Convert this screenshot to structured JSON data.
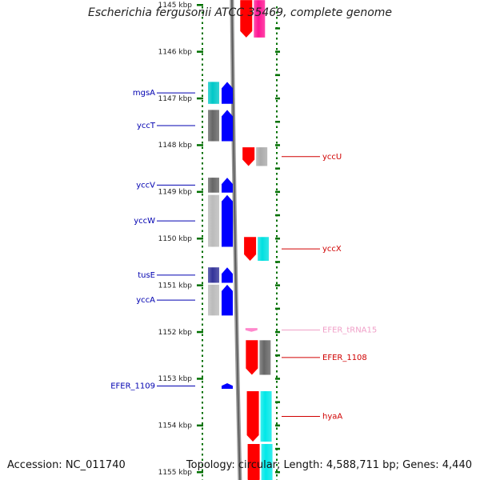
{
  "title": "Escherichia fergusonii ATCC 35469, complete genome",
  "accession": "Accession: NC_011740",
  "topology": "Topology: circular; Length: 4,588,711 bp; Genes: 4,440",
  "axis_unit": "kbp",
  "kbp_ticks": [
    {
      "kbp": 1145,
      "label": "1145 kbp"
    },
    {
      "kbp": 1146,
      "label": "1146 kbp"
    },
    {
      "kbp": 1147,
      "label": "1147 kbp"
    },
    {
      "kbp": 1148,
      "label": "1148 kbp"
    },
    {
      "kbp": 1149,
      "label": "1149 kbp"
    },
    {
      "kbp": 1150,
      "label": "1150 kbp"
    },
    {
      "kbp": 1151,
      "label": "1151 kbp"
    },
    {
      "kbp": 1152,
      "label": "1152 kbp"
    },
    {
      "kbp": 1153,
      "label": "1153 kbp"
    },
    {
      "kbp": 1154,
      "label": "1154 kbp"
    },
    {
      "kbp": 1155,
      "label": "1155 kbp"
    }
  ],
  "colors": {
    "left_label": "#0000b0",
    "right_label": "#d00000",
    "trna_label": "#f0a0c8",
    "backbone": "#888888",
    "tick": "#007000",
    "forward_cds": "#0000ff",
    "reverse_cds": "#ff0000",
    "trna": "#ff88cc"
  },
  "genes": [
    {
      "label": "",
      "start": 1144.9,
      "end": 1145.7,
      "strand": "reverse",
      "feature_color": "#ff0000",
      "cog_color": "#ff1493"
    },
    {
      "label": "mgsA",
      "start": 1146.65,
      "end": 1147.12,
      "strand": "forward",
      "feature_color": "#0000ff",
      "cog_color": "#00c8c8"
    },
    {
      "label": "yccT",
      "start": 1147.25,
      "end": 1147.92,
      "strand": "forward",
      "feature_color": "#0000ff",
      "cog_color": "#666666"
    },
    {
      "label": "yccU",
      "start": 1148.05,
      "end": 1148.45,
      "strand": "reverse",
      "feature_color": "#ff0000",
      "cog_color": "#aaaaaa"
    },
    {
      "label": "yccV",
      "start": 1148.7,
      "end": 1149.02,
      "strand": "forward",
      "feature_color": "#0000ff",
      "cog_color": "#666666"
    },
    {
      "label": "yccW",
      "start": 1149.07,
      "end": 1150.18,
      "strand": "forward",
      "feature_color": "#0000ff",
      "cog_color": "#bbbbbb"
    },
    {
      "label": "yccX",
      "start": 1149.97,
      "end": 1150.48,
      "strand": "reverse",
      "feature_color": "#ff0000",
      "cog_color": "#00e0e0"
    },
    {
      "label": "tusE",
      "start": 1150.62,
      "end": 1150.95,
      "strand": "forward",
      "feature_color": "#0000ff",
      "cog_color": "#333399"
    },
    {
      "label": "yccA",
      "start": 1150.99,
      "end": 1151.65,
      "strand": "forward",
      "feature_color": "#0000ff",
      "cog_color": "#bbbbbb"
    },
    {
      "label": "EFER_tRNA15",
      "start": 1151.92,
      "end": 1152.0,
      "strand": "reverse",
      "feature_color": "#ff88cc",
      "cog_color": ""
    },
    {
      "label": "EFER_1108",
      "start": 1152.18,
      "end": 1152.92,
      "strand": "reverse",
      "feature_color": "#ff0000",
      "cog_color": "#666666"
    },
    {
      "label": "EFER_1109",
      "start": 1153.1,
      "end": 1153.22,
      "strand": "forward",
      "feature_color": "#0000ff",
      "cog_color": ""
    },
    {
      "label": "hyaA",
      "start": 1153.27,
      "end": 1154.35,
      "strand": "reverse",
      "feature_color": "#ff0000",
      "cog_color": "#00e8e8"
    },
    {
      "label": "",
      "start": 1154.4,
      "end": 1155.3,
      "strand": "reverse",
      "feature_color": "#ff0000",
      "cog_color": "#00e8e8"
    }
  ]
}
